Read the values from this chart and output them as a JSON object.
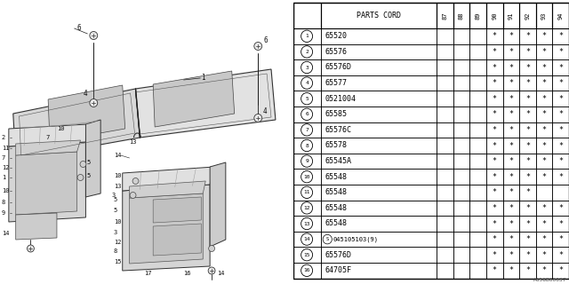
{
  "watermark": "A656B00037",
  "table": {
    "header_col": "PARTS CORD",
    "year_cols": [
      "87",
      "88",
      "89",
      "90",
      "91",
      "92",
      "93",
      "94"
    ],
    "rows": [
      {
        "num": "1",
        "part": "65520",
        "years": [
          0,
          0,
          0,
          1,
          1,
          1,
          1,
          1
        ]
      },
      {
        "num": "2",
        "part": "65576",
        "years": [
          0,
          0,
          0,
          1,
          1,
          1,
          1,
          1
        ]
      },
      {
        "num": "3",
        "part": "65576D",
        "years": [
          0,
          0,
          0,
          1,
          1,
          1,
          1,
          1
        ]
      },
      {
        "num": "4",
        "part": "65577",
        "years": [
          0,
          0,
          0,
          1,
          1,
          1,
          1,
          1
        ]
      },
      {
        "num": "5",
        "part": "0521004",
        "years": [
          0,
          0,
          0,
          1,
          1,
          1,
          1,
          1
        ]
      },
      {
        "num": "6",
        "part": "65585",
        "years": [
          0,
          0,
          0,
          1,
          1,
          1,
          1,
          1
        ]
      },
      {
        "num": "7",
        "part": "65576C",
        "years": [
          0,
          0,
          0,
          1,
          1,
          1,
          1,
          1
        ]
      },
      {
        "num": "8",
        "part": "65578",
        "years": [
          0,
          0,
          0,
          1,
          1,
          1,
          1,
          1
        ]
      },
      {
        "num": "9",
        "part": "65545A",
        "years": [
          0,
          0,
          0,
          1,
          1,
          1,
          1,
          1
        ]
      },
      {
        "num": "10",
        "part": "65548",
        "years": [
          0,
          0,
          0,
          1,
          1,
          1,
          1,
          1
        ]
      },
      {
        "num": "11",
        "part": "65548",
        "years": [
          0,
          0,
          0,
          1,
          1,
          1,
          0,
          0
        ]
      },
      {
        "num": "12",
        "part": "65548",
        "years": [
          0,
          0,
          0,
          1,
          1,
          1,
          1,
          1
        ]
      },
      {
        "num": "13",
        "part": "65548",
        "years": [
          0,
          0,
          0,
          1,
          1,
          1,
          1,
          1
        ]
      },
      {
        "num": "14",
        "part": "045105103(9)",
        "years": [
          0,
          0,
          0,
          1,
          1,
          1,
          1,
          1
        ],
        "prefix_circle": "S"
      },
      {
        "num": "15",
        "part": "65576D",
        "years": [
          0,
          0,
          0,
          1,
          1,
          1,
          1,
          1
        ]
      },
      {
        "num": "16",
        "part": "64705F",
        "years": [
          0,
          0,
          0,
          1,
          1,
          1,
          1,
          1
        ]
      }
    ]
  },
  "bg_color": "#ffffff",
  "line_color": "#000000",
  "text_color": "#000000"
}
